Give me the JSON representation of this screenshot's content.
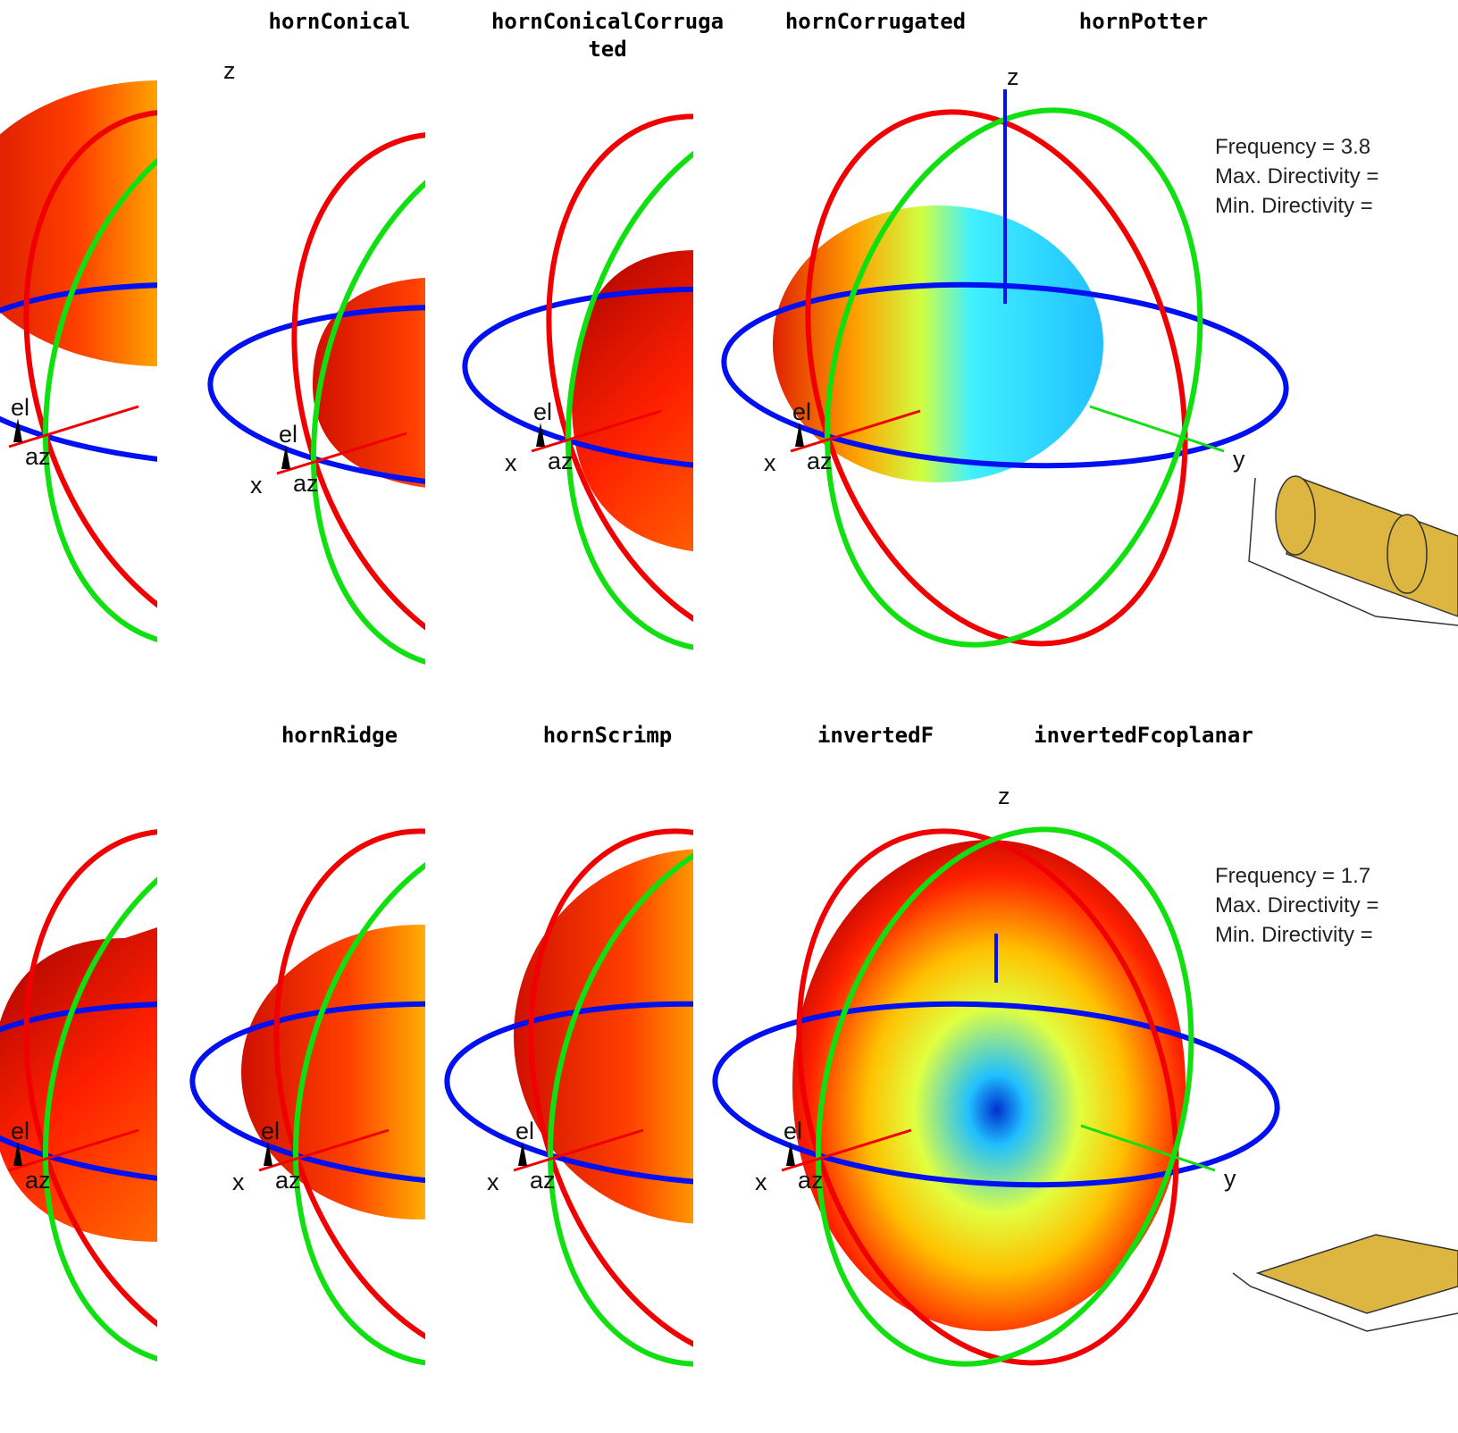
{
  "rows": [
    {
      "titles": [
        [
          "hornConical"
        ],
        [
          "hornConicalCorruga",
          "ted"
        ],
        [
          "hornCorrugated"
        ],
        [
          "hornPotter"
        ]
      ],
      "info": [
        "Frequency = 3.8",
        "Max. Directivity =",
        "Min. Directivity ="
      ]
    },
    {
      "titles": [
        [
          "hornRidge"
        ],
        [
          "hornScrimp"
        ],
        [
          "invertedF"
        ],
        [
          "invertedFcoplanar"
        ]
      ],
      "info": [
        "Frequency = 1.7",
        "Max. Directivity =",
        "Min. Directivity ="
      ]
    }
  ],
  "axis_labels": {
    "x": "x",
    "y": "y",
    "z": "z",
    "el": "el",
    "az": "az"
  }
}
